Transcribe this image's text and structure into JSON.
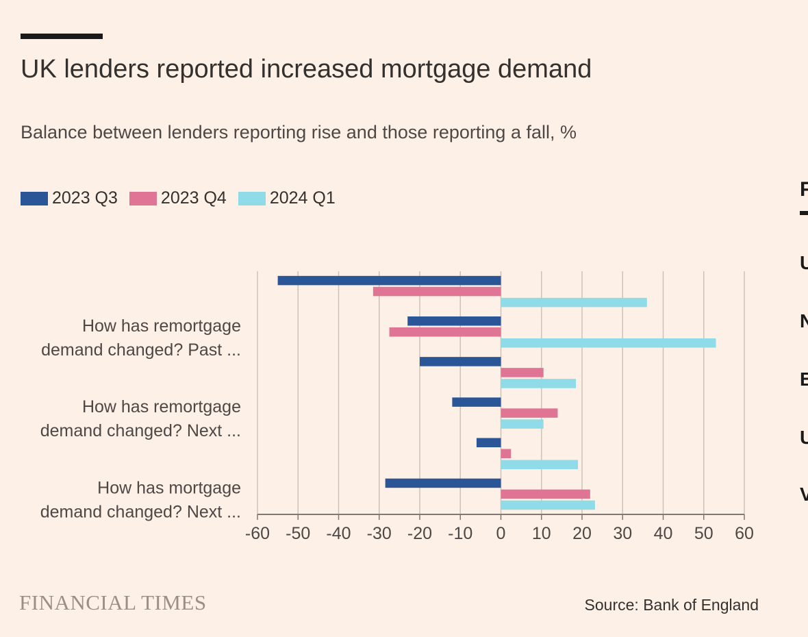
{
  "title": "UK lenders reported increased mortgage demand",
  "subtitle": "Balance between lenders reporting rise and those reporting a fall, %",
  "legend": [
    {
      "label": "2023 Q3",
      "color": "#2a5597"
    },
    {
      "label": "2023 Q4",
      "color": "#e07495"
    },
    {
      "label": "2024 Q1",
      "color": "#8fdce8"
    }
  ],
  "brand": "FINANCIAL TIMES",
  "source": "Source: Bank of England",
  "side_panel": {
    "heading": "F",
    "items": [
      "U",
      "N",
      "B",
      "U",
      "V"
    ]
  },
  "chart_data": {
    "type": "bar",
    "orientation": "horizontal",
    "categories": [
      "",
      "How has remortgage demand changed? Past ...",
      "",
      "How has remortgage demand changed? Next ...",
      "",
      "How has mortgage demand changed? Next ..."
    ],
    "category_label_lines": [
      [],
      [
        "How has remortgage",
        "demand changed? Past ..."
      ],
      [],
      [
        "How has remortgage",
        "demand changed? Next ..."
      ],
      [],
      [
        "How has mortgage",
        "demand changed? Next ..."
      ]
    ],
    "series": [
      {
        "name": "2023 Q3",
        "color": "#2a5597",
        "values": [
          -55,
          -23,
          -20,
          -12,
          -6,
          -28.5
        ]
      },
      {
        "name": "2023 Q4",
        "color": "#e07495",
        "values": [
          -31.5,
          -27.5,
          10.5,
          14,
          2.5,
          22
        ]
      },
      {
        "name": "2024 Q1",
        "color": "#8fdce8",
        "values": [
          36,
          53,
          18.5,
          10.5,
          19,
          23.2
        ]
      }
    ],
    "xlim": [
      -60,
      60
    ],
    "xticks": [
      -60,
      -50,
      -40,
      -30,
      -20,
      -10,
      0,
      10,
      20,
      30,
      40,
      50,
      60
    ],
    "grid": true
  }
}
